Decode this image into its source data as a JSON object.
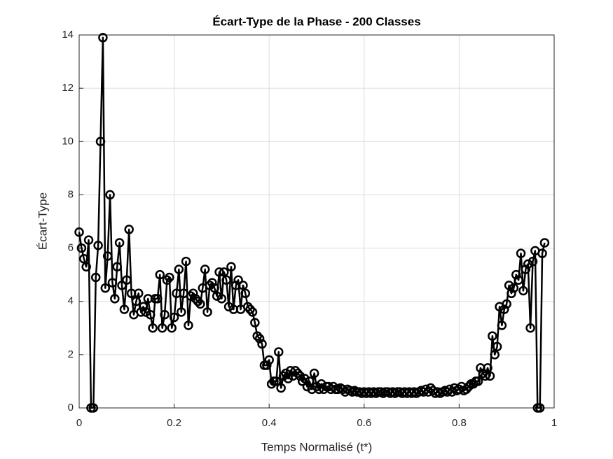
{
  "chart_data": {
    "type": "line",
    "title": "Écart-Type de la Phase - 200 Classes",
    "xlabel": "Temps Normalisé (t*)",
    "ylabel": "Écart-Type",
    "xlim": [
      0,
      1
    ],
    "xticks": [
      0,
      0.2,
      0.4,
      0.6,
      0.8,
      1
    ],
    "ylim": [
      0,
      14
    ],
    "yticks": [
      0,
      2,
      4,
      6,
      8,
      10,
      12,
      14
    ],
    "grid": true,
    "x": [
      0,
      0.005,
      0.01,
      0.015,
      0.02,
      0.025,
      0.03,
      0.035,
      0.04,
      0.045,
      0.05,
      0.055,
      0.06,
      0.065,
      0.07,
      0.075,
      0.08,
      0.085,
      0.09,
      0.095,
      0.1,
      0.105,
      0.11,
      0.115,
      0.12,
      0.125,
      0.13,
      0.135,
      0.14,
      0.145,
      0.15,
      0.155,
      0.16,
      0.165,
      0.17,
      0.175,
      0.18,
      0.185,
      0.19,
      0.195,
      0.2,
      0.205,
      0.21,
      0.215,
      0.22,
      0.225,
      0.23,
      0.235,
      0.24,
      0.245,
      0.25,
      0.255,
      0.26,
      0.265,
      0.27,
      0.275,
      0.28,
      0.285,
      0.29,
      0.295,
      0.3,
      0.305,
      0.31,
      0.315,
      0.32,
      0.325,
      0.33,
      0.335,
      0.34,
      0.345,
      0.35,
      0.355,
      0.36,
      0.365,
      0.37,
      0.375,
      0.38,
      0.385,
      0.39,
      0.395,
      0.4,
      0.405,
      0.41,
      0.415,
      0.42,
      0.425,
      0.43,
      0.435,
      0.44,
      0.445,
      0.45,
      0.455,
      0.46,
      0.465,
      0.47,
      0.475,
      0.48,
      0.485,
      0.49,
      0.495,
      0.5,
      0.505,
      0.51,
      0.515,
      0.52,
      0.525,
      0.53,
      0.535,
      0.54,
      0.545,
      0.55,
      0.555,
      0.56,
      0.565,
      0.57,
      0.575,
      0.58,
      0.585,
      0.59,
      0.595,
      0.6,
      0.605,
      0.61,
      0.615,
      0.62,
      0.625,
      0.63,
      0.635,
      0.64,
      0.645,
      0.65,
      0.655,
      0.66,
      0.665,
      0.67,
      0.675,
      0.68,
      0.685,
      0.69,
      0.695,
      0.7,
      0.705,
      0.71,
      0.715,
      0.72,
      0.725,
      0.73,
      0.735,
      0.74,
      0.745,
      0.75,
      0.755,
      0.76,
      0.765,
      0.77,
      0.775,
      0.78,
      0.785,
      0.79,
      0.795,
      0.8,
      0.805,
      0.81,
      0.815,
      0.82,
      0.825,
      0.83,
      0.835,
      0.84,
      0.845,
      0.85,
      0.855,
      0.86,
      0.865,
      0.87,
      0.875,
      0.88,
      0.885,
      0.89,
      0.895,
      0.9,
      0.905,
      0.91,
      0.915,
      0.92,
      0.925,
      0.93,
      0.935,
      0.94,
      0.945,
      0.95,
      0.955,
      0.96,
      0.965,
      0.97,
      0.975,
      0.98
    ],
    "series": [
      {
        "color": "#000000",
        "values": [
          6.6,
          6.0,
          5.6,
          5.3,
          6.3,
          0,
          0,
          4.9,
          6.1,
          10.0,
          13.9,
          4.5,
          5.7,
          8.0,
          4.7,
          4.1,
          5.3,
          6.2,
          4.6,
          3.7,
          4.8,
          6.7,
          4.3,
          3.5,
          4.0,
          4.3,
          3.6,
          3.8,
          3.6,
          4.1,
          3.5,
          3.0,
          4.1,
          4.1,
          5.0,
          3.0,
          3.5,
          4.8,
          4.9,
          3.0,
          3.4,
          4.3,
          5.2,
          3.6,
          4.3,
          5.5,
          3.1,
          4.2,
          4.3,
          4.1,
          4.0,
          3.9,
          4.5,
          5.2,
          3.6,
          4.6,
          4.7,
          4.5,
          4.2,
          5.1,
          4.1,
          5.1,
          4.8,
          3.8,
          5.3,
          3.7,
          4.6,
          4.8,
          3.7,
          4.6,
          4.3,
          3.8,
          3.7,
          3.6,
          3.2,
          2.7,
          2.6,
          2.4,
          1.6,
          1.6,
          1.8,
          0.9,
          1.0,
          1.0,
          2.1,
          0.75,
          1.2,
          1.3,
          1.1,
          1.4,
          1.2,
          1.4,
          1.3,
          1.2,
          1.0,
          1.1,
          0.8,
          1.0,
          0.7,
          1.3,
          0.8,
          0.7,
          0.9,
          0.7,
          0.8,
          0.8,
          0.7,
          0.8,
          0.7,
          0.7,
          0.75,
          0.7,
          0.6,
          0.7,
          0.65,
          0.6,
          0.65,
          0.6,
          0.6,
          0.55,
          0.6,
          0.55,
          0.6,
          0.55,
          0.6,
          0.55,
          0.6,
          0.6,
          0.55,
          0.6,
          0.6,
          0.55,
          0.6,
          0.55,
          0.6,
          0.6,
          0.55,
          0.6,
          0.55,
          0.6,
          0.55,
          0.6,
          0.55,
          0.6,
          0.65,
          0.6,
          0.7,
          0.6,
          0.75,
          0.65,
          0.55,
          0.6,
          0.55,
          0.6,
          0.65,
          0.6,
          0.7,
          0.6,
          0.75,
          0.65,
          0.7,
          0.8,
          0.65,
          0.7,
          0.8,
          0.9,
          0.9,
          1.0,
          1.0,
          1.5,
          1.3,
          1.2,
          1.5,
          1.2,
          2.7,
          2.0,
          2.3,
          3.8,
          3.1,
          3.7,
          3.9,
          4.6,
          4.3,
          4.5,
          5.0,
          4.8,
          5.8,
          4.4,
          5.2,
          5.4,
          3.0,
          5.5,
          5.9,
          0,
          0,
          5.8,
          6.2
        ]
      }
    ]
  }
}
